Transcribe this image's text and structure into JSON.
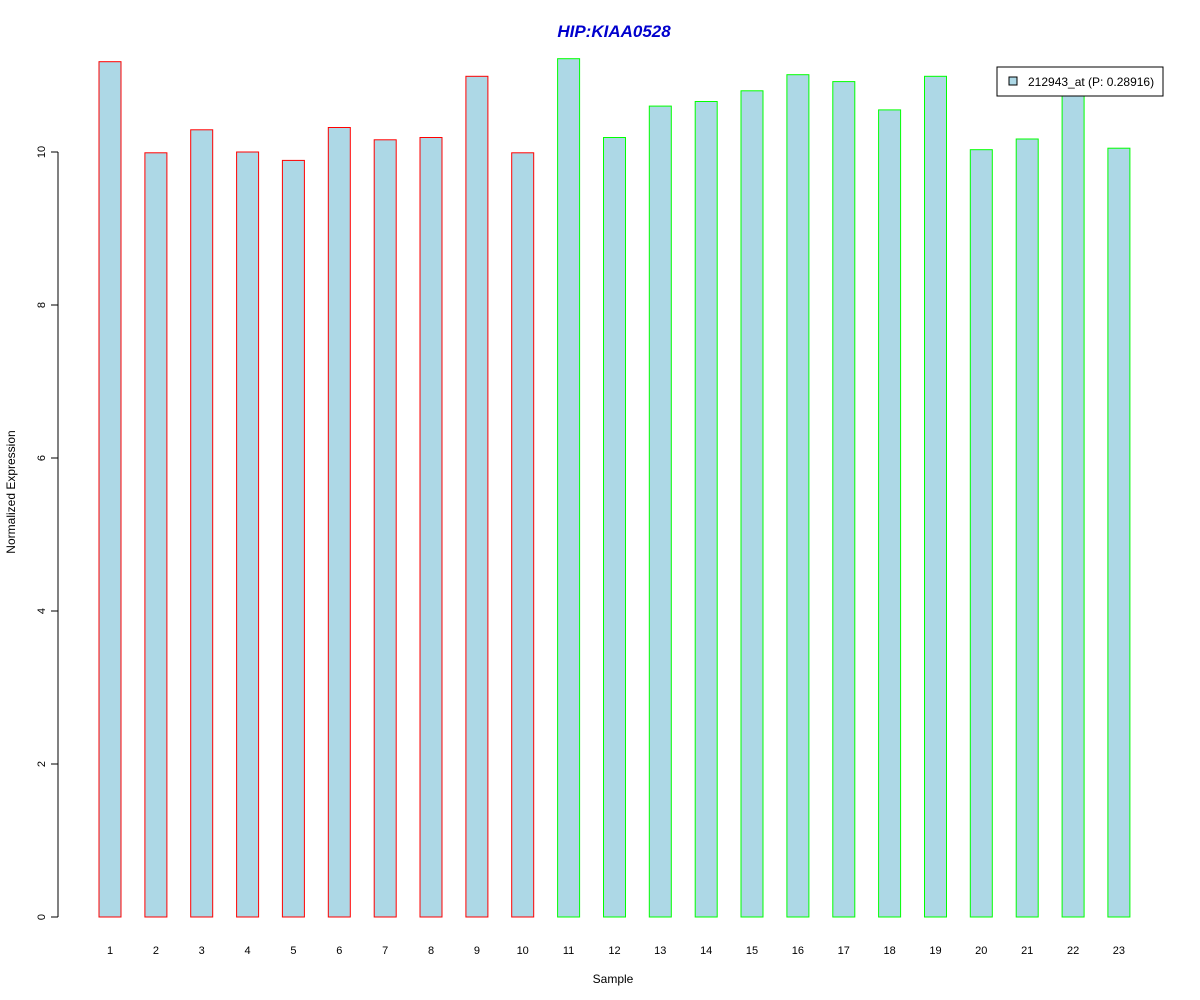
{
  "chart_data": {
    "type": "bar",
    "title": "HIP:KIAA0528",
    "xlabel": "Sample",
    "ylabel": "Normalized Expression",
    "categories": [
      "1",
      "2",
      "3",
      "4",
      "5",
      "6",
      "7",
      "8",
      "9",
      "10",
      "11",
      "12",
      "13",
      "14",
      "15",
      "16",
      "17",
      "18",
      "19",
      "20",
      "21",
      "22",
      "23"
    ],
    "series": [
      {
        "name": "212943_at (P: 0.28916)",
        "values": [
          11.18,
          9.99,
          10.29,
          10.0,
          9.89,
          10.32,
          10.16,
          10.19,
          10.99,
          9.99,
          11.22,
          10.19,
          10.6,
          10.66,
          10.8,
          11.01,
          10.92,
          10.55,
          10.99,
          10.03,
          10.17,
          10.77,
          10.05
        ],
        "fill_color": "#add8e6",
        "border_colors": [
          "#ff0000",
          "#ff0000",
          "#ff0000",
          "#ff0000",
          "#ff0000",
          "#ff0000",
          "#ff0000",
          "#ff0000",
          "#ff0000",
          "#ff0000",
          "#00ff00",
          "#00ff00",
          "#00ff00",
          "#00ff00",
          "#00ff00",
          "#00ff00",
          "#00ff00",
          "#00ff00",
          "#00ff00",
          "#00ff00",
          "#00ff00",
          "#00ff00",
          "#00ff00"
        ]
      }
    ],
    "yticks": [
      0,
      2,
      4,
      6,
      8,
      10
    ],
    "ylim": [
      0,
      11.22
    ],
    "grid": false,
    "legend_position": "top-right",
    "title_color": "#0000cd"
  }
}
